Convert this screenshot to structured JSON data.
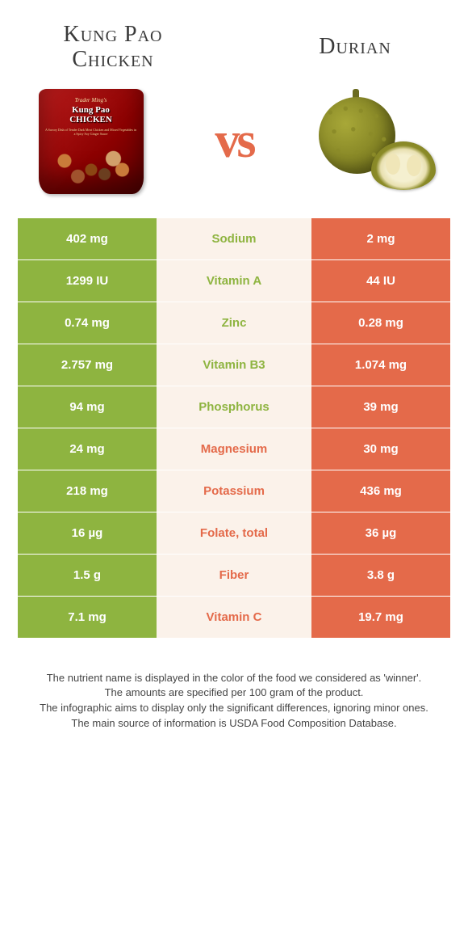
{
  "left_food": {
    "title_line1": "Kung Pao",
    "title_line2": "Chicken",
    "color": "#8eb440",
    "bag_brand": "Trader Ming's",
    "bag_name1": "Kung Pao",
    "bag_name2": "CHICKEN",
    "bag_desc": "A Savory Dish of Tender Dark Meat Chicken and Mixed Vegetables in a Spicy Soy Ginger Sauce"
  },
  "right_food": {
    "title": "Durian",
    "color": "#e46a4a"
  },
  "vs_label": "vs",
  "rows": [
    {
      "nutrient": "Sodium",
      "left": "402 mg",
      "right": "2 mg",
      "winner": "left"
    },
    {
      "nutrient": "Vitamin A",
      "left": "1299 IU",
      "right": "44 IU",
      "winner": "left"
    },
    {
      "nutrient": "Zinc",
      "left": "0.74 mg",
      "right": "0.28 mg",
      "winner": "left"
    },
    {
      "nutrient": "Vitamin B3",
      "left": "2.757 mg",
      "right": "1.074 mg",
      "winner": "left"
    },
    {
      "nutrient": "Phosphorus",
      "left": "94 mg",
      "right": "39 mg",
      "winner": "left"
    },
    {
      "nutrient": "Magnesium",
      "left": "24 mg",
      "right": "30 mg",
      "winner": "right"
    },
    {
      "nutrient": "Potassium",
      "left": "218 mg",
      "right": "436 mg",
      "winner": "right"
    },
    {
      "nutrient": "Folate, total",
      "left": "16 µg",
      "right": "36 µg",
      "winner": "right"
    },
    {
      "nutrient": "Fiber",
      "left": "1.5 g",
      "right": "3.8 g",
      "winner": "right"
    },
    {
      "nutrient": "Vitamin C",
      "left": "7.1 mg",
      "right": "19.7 mg",
      "winner": "right"
    }
  ],
  "footer": {
    "line1": "The nutrient name is displayed in the color of the food we considered as 'winner'.",
    "line2": "The amounts are specified per 100 gram of the product.",
    "line3": "The infographic aims to display only the significant differences, ignoring minor ones.",
    "line4": "The main source of information is USDA Food Composition Database."
  },
  "style": {
    "mid_bg": "#fbf2ea",
    "footer_color": "#454545"
  }
}
